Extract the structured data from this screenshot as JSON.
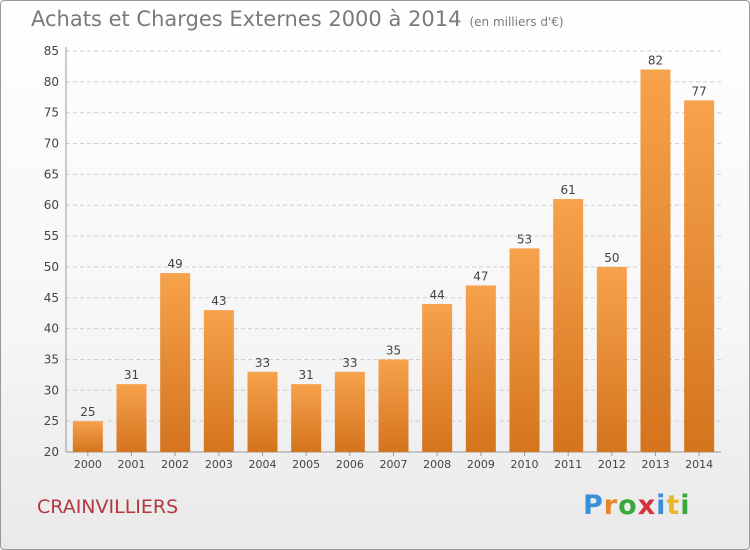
{
  "header": {
    "title": "Achats et Charges Externes 2000 à 2014",
    "unit": "(en milliers d'€)"
  },
  "footer": {
    "commune": "CRAINVILLIERS",
    "logo_letters": [
      {
        "ch": "P",
        "color": "#3a8fd8"
      },
      {
        "ch": "r",
        "color": "#e8842a"
      },
      {
        "ch": "o",
        "color": "#3aa83a"
      },
      {
        "ch": "x",
        "color": "#d8303a"
      },
      {
        "ch": "i",
        "color": "#3a8fd8"
      },
      {
        "ch": "t",
        "color": "#e8b82a"
      },
      {
        "ch": "i",
        "color": "#3aa83a"
      }
    ]
  },
  "colors": {
    "bar_top": "#f7a24c",
    "bar_bottom": "#d4741d",
    "grid": "#d0d0d0",
    "axis_text": "#444444"
  },
  "chart_data": {
    "type": "bar",
    "categories": [
      "2000",
      "2001",
      "2002",
      "2003",
      "2004",
      "2005",
      "2006",
      "2007",
      "2008",
      "2009",
      "2010",
      "2011",
      "2012",
      "2013",
      "2014"
    ],
    "values": [
      25,
      31,
      49,
      43,
      33,
      31,
      33,
      35,
      44,
      47,
      53,
      61,
      50,
      82,
      77
    ],
    "ylim": [
      20,
      85
    ],
    "yticks": [
      20,
      25,
      30,
      35,
      40,
      45,
      50,
      55,
      60,
      65,
      70,
      75,
      80,
      85
    ],
    "grid": "horizontal dashed"
  }
}
